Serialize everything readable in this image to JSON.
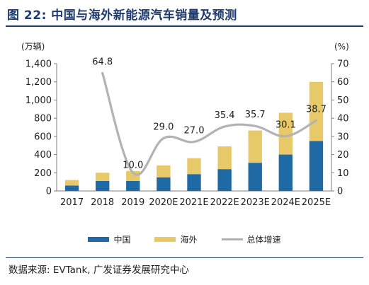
{
  "header": {
    "title": "图 22: 中国与海外新能源汽车销量及预测"
  },
  "source": "数据来源: EVTank, 广发证券发展研究中心",
  "colors": {
    "china": "#1f6aa5",
    "overseas": "#e8c96a",
    "growth": "#b3b3b3",
    "title": "#1f3b6e"
  },
  "chart_data": {
    "type": "bar",
    "stacked": true,
    "categories": [
      "2017",
      "2018",
      "2019",
      "2020E",
      "2021E",
      "2022E",
      "2023E",
      "2024E",
      "2025E"
    ],
    "series": [
      {
        "name": "中国",
        "values": [
          60,
          110,
          110,
          150,
          185,
          240,
          310,
          400,
          550
        ]
      },
      {
        "name": "海外",
        "values": [
          60,
          90,
          110,
          130,
          175,
          250,
          355,
          460,
          650
        ]
      }
    ],
    "line_series": {
      "name": "总体增速",
      "values": [
        null,
        64.8,
        10.0,
        29.0,
        27.0,
        35.4,
        35.7,
        30.1,
        38.7
      ],
      "labels": [
        "",
        "64.8",
        "10.0",
        "29.0",
        "27.0",
        "35.4",
        "35.7",
        "30.1",
        "38.7"
      ]
    },
    "y_left": {
      "unit": "(万辆)",
      "ylim": [
        0,
        1400
      ],
      "ticks": [
        "0",
        "200",
        "400",
        "600",
        "800",
        "1,000",
        "1,200",
        "1,400"
      ]
    },
    "y_right": {
      "unit": "(%)",
      "ylim": [
        0,
        70
      ],
      "ticks": [
        "0",
        "10",
        "20",
        "30",
        "40",
        "50",
        "60",
        "70"
      ]
    },
    "legend": [
      "中国",
      "海外",
      "总体增速"
    ],
    "legend_position": "bottom",
    "grid": false
  }
}
